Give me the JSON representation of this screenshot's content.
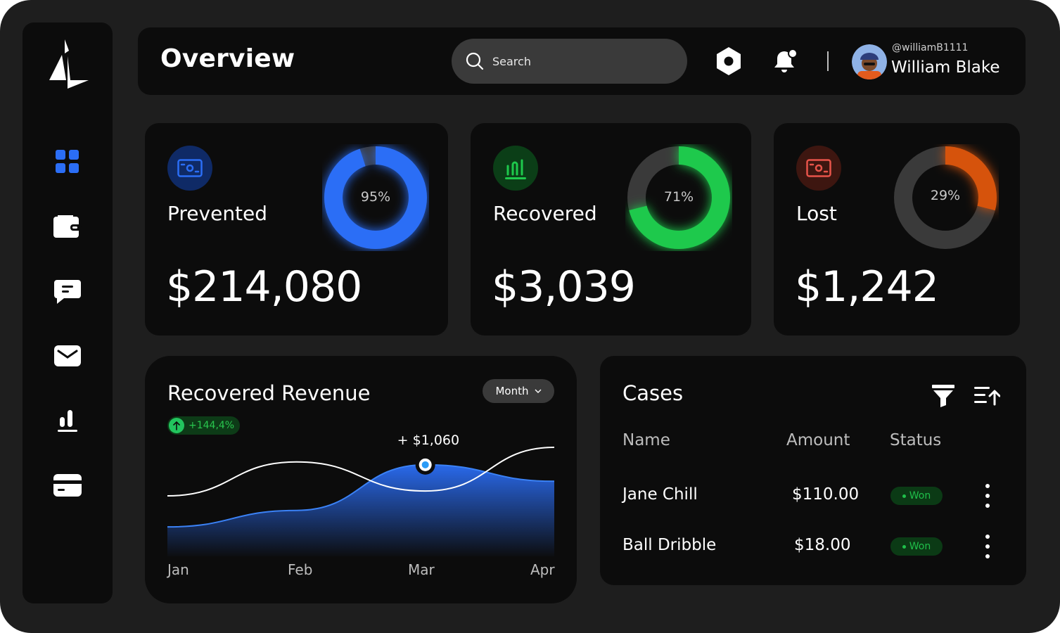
{
  "header": {
    "title": "Overview",
    "search_placeholder": "Search",
    "user": {
      "handle": "@williamB1111",
      "name": "William Blake"
    }
  },
  "sidebar": {
    "items": [
      {
        "icon": "dashboard-icon",
        "active": true
      },
      {
        "icon": "wallet-icon",
        "active": false
      },
      {
        "icon": "chat-icon",
        "active": false
      },
      {
        "icon": "mail-icon",
        "active": false
      },
      {
        "icon": "chart-icon",
        "active": false
      },
      {
        "icon": "card-icon",
        "active": false
      }
    ]
  },
  "stats": [
    {
      "label": "Prevented",
      "value": "$214,080",
      "percent": "95%",
      "fraction": 0.95,
      "color": "#2b6ef6",
      "badge_bg": "#0f2a66",
      "icon": "money-icon"
    },
    {
      "label": "Recovered",
      "value": "$3,039",
      "percent": "71%",
      "fraction": 0.71,
      "color": "#1ec94c",
      "badge_bg": "#0b3e17",
      "icon": "chart-bars-icon"
    },
    {
      "label": "Lost",
      "value": "$1,242",
      "percent": "29%",
      "fraction": 0.29,
      "color": "#d6530c",
      "badge_bg": "#3d1610",
      "icon": "money-icon"
    }
  ],
  "revenue": {
    "title": "Recovered Revenue",
    "period_label": "Month",
    "growth": "+144,4%",
    "peak_label": "+ $1,060"
  },
  "chart_data": {
    "type": "area",
    "categories": [
      "Jan",
      "Feb",
      "Mar",
      "Apr"
    ],
    "series": [
      {
        "values": [
          0.18,
          0.35,
          0.82,
          0.65
        ],
        "style": "filled-blue"
      },
      {
        "values": [
          0.5,
          0.85,
          0.55,
          1.0
        ],
        "style": "white-line"
      }
    ],
    "highlight": {
      "category": "Mar",
      "label": "+ $1,060"
    },
    "grid": false
  },
  "cases": {
    "title": "Cases",
    "columns": [
      "Name",
      "Amount",
      "Status"
    ],
    "rows": [
      {
        "name": "Jane Chill",
        "amount": "$110.00",
        "status": "Won"
      },
      {
        "name": "Ball Dribble",
        "amount": "$18.00",
        "status": "Won"
      }
    ]
  }
}
